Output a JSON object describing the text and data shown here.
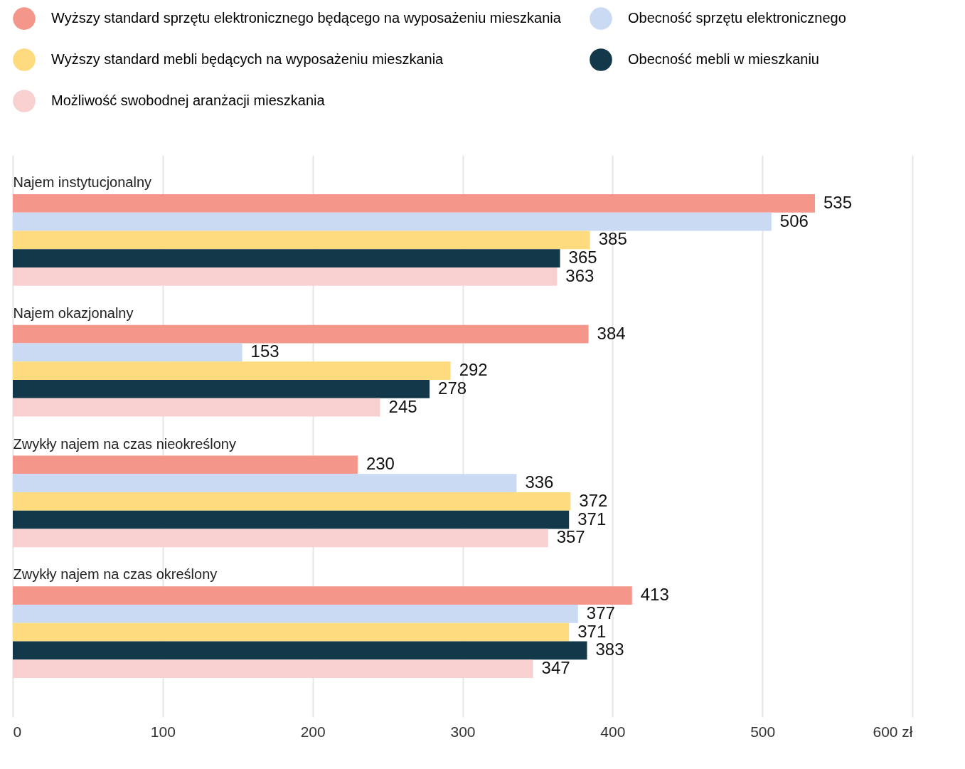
{
  "chart_data": {
    "type": "bar",
    "orientation": "horizontal",
    "categories": [
      "Najem instytucjonalny",
      "Najem okazjonalny",
      "Zwykły najem na czas nieokreślony",
      "Zwykły najem na czas określony"
    ],
    "series": [
      {
        "name": "Wyższy standard sprzętu elektronicznego będącego na wyposażeniu mieszkania",
        "color": "#f4968a",
        "values": [
          535,
          384,
          230,
          413
        ]
      },
      {
        "name": "Obecność sprzętu elektronicznego",
        "color": "#c9daf2",
        "values": [
          506,
          153,
          336,
          377
        ]
      },
      {
        "name": "Wyższy standard mebli będących na wyposażeniu mieszkania",
        "color": "#fedb7e",
        "values": [
          385,
          292,
          372,
          371
        ]
      },
      {
        "name": "Obecność mebli w mieszkaniu",
        "color": "#13384a",
        "values": [
          365,
          278,
          371,
          383
        ]
      },
      {
        "name": "Możliwość swobodnej aranżacji mieszkania",
        "color": "#f8d0d0",
        "values": [
          363,
          245,
          357,
          347
        ]
      }
    ],
    "xlim": [
      0,
      600
    ],
    "xticks": [
      0,
      100,
      200,
      300,
      400,
      500,
      {
        "value": 600,
        "label": "600 zł"
      }
    ],
    "grid": "x",
    "legend": "top",
    "data_labels": true
  }
}
